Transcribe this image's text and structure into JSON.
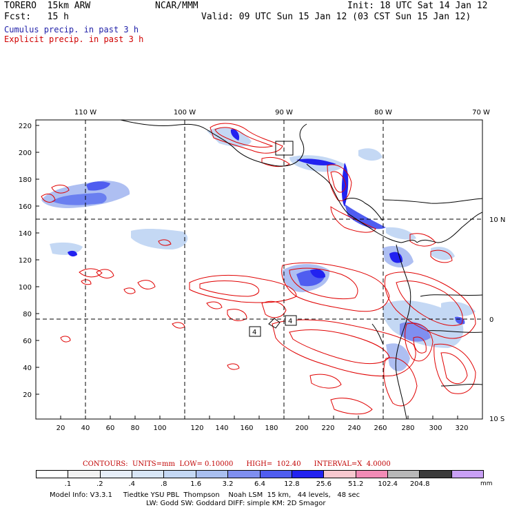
{
  "header": {
    "model": "TORERO  15km ARW",
    "org": "NCAR/MMM",
    "init": "Init: 18 UTC Sat 14 Jan 12",
    "fcst": "Fcst:   15 h",
    "valid": "Valid: 09 UTC Sun 15 Jan 12 (03 CST Sun 15 Jan 12)",
    "field1": "Cumulus precip. in past 3 h",
    "field2": "Explicit precip. in past 3 h",
    "field1_color": "#1f1fa8",
    "field2_color": "#d00000"
  },
  "map": {
    "lon_labels": [
      "110 W",
      "100 W",
      "90 W",
      "80 W",
      "70 W"
    ],
    "lat_labels": [
      "10 N",
      "0",
      "10 S"
    ],
    "x_ticks": [
      "20",
      "40",
      "60",
      "80",
      "100",
      "120",
      "140",
      "160",
      "180",
      "200",
      "220",
      "240",
      "260",
      "280",
      "300",
      "320"
    ],
    "y_ticks": [
      "20",
      "40",
      "60",
      "80",
      "100",
      "120",
      "140",
      "160",
      "180",
      "200",
      "220"
    ],
    "point_labels": [
      "4",
      "4"
    ]
  },
  "contours": {
    "text": "CONTOURS:  UNITS=mm  LOW= 0.10000      HIGH=  102.40      INTERVAL=X  4.0000",
    "color": "#c00000"
  },
  "colorbar": {
    "labels": [
      ".1",
      ".2",
      ".4",
      ".8",
      "1.6",
      "3.2",
      "6.4",
      "12.8",
      "25.6",
      "51.2",
      "102.4",
      "204.8"
    ],
    "colors": [
      "#ffffff",
      "#f2f2f2",
      "#e6eef8",
      "#d8e6f6",
      "#c4d8f4",
      "#a9bff0",
      "#7f8ff0",
      "#4f5df0",
      "#2222f0",
      "#f7c8cf",
      "#f28bb6",
      "#b8b8b8",
      "#3a3a3a",
      "#c9a0f5"
    ],
    "unit": "mm"
  },
  "model_info": {
    "line1": "Model Info: V3.3.1     Tiedtke YSU PBL  Thompson    Noah LSM  15 km,   44 levels,   48 sec",
    "line2": "LW: Godd SW: Goddard DIFF: simple KM: 2D Smagor"
  }
}
